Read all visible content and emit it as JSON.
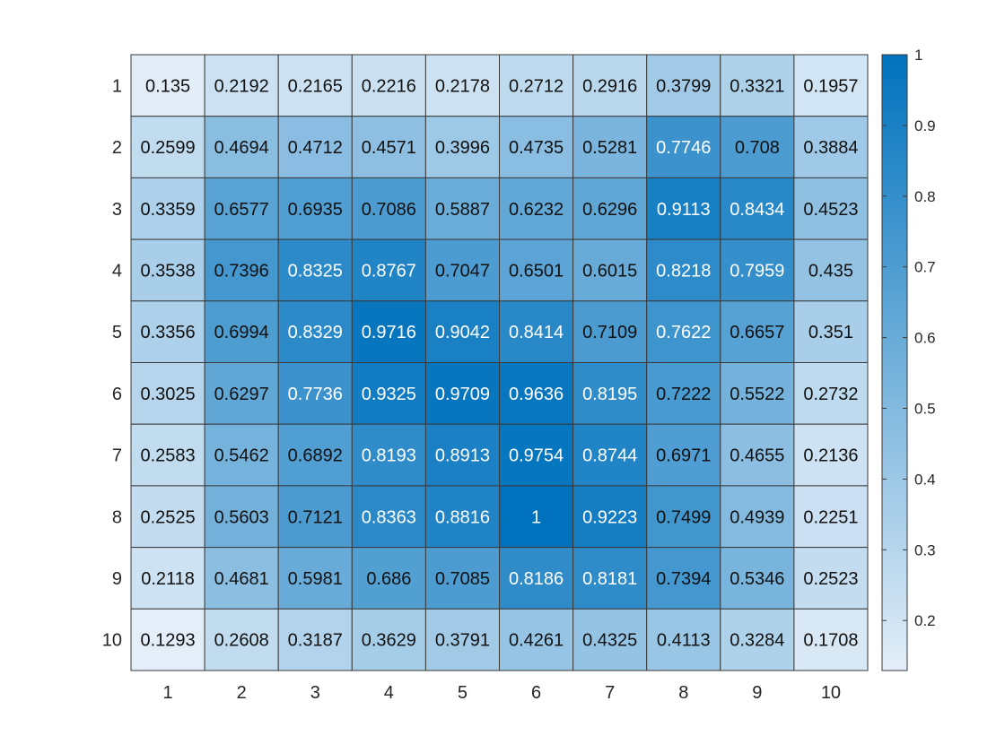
{
  "chart_data": {
    "type": "heatmap",
    "x_categories": [
      "1",
      "2",
      "3",
      "4",
      "5",
      "6",
      "7",
      "8",
      "9",
      "10"
    ],
    "y_categories": [
      "1",
      "2",
      "3",
      "4",
      "5",
      "6",
      "7",
      "8",
      "9",
      "10"
    ],
    "values": [
      [
        0.135,
        0.2192,
        0.2165,
        0.2216,
        0.2178,
        0.2712,
        0.2916,
        0.3799,
        0.3321,
        0.1957
      ],
      [
        0.2599,
        0.4694,
        0.4712,
        0.4571,
        0.3996,
        0.4735,
        0.5281,
        0.7746,
        0.708,
        0.3884
      ],
      [
        0.3359,
        0.6577,
        0.6935,
        0.7086,
        0.5887,
        0.6232,
        0.6296,
        0.9113,
        0.8434,
        0.4523
      ],
      [
        0.3538,
        0.7396,
        0.8325,
        0.8767,
        0.7047,
        0.6501,
        0.6015,
        0.8218,
        0.7959,
        0.435
      ],
      [
        0.3356,
        0.6994,
        0.8329,
        0.9716,
        0.9042,
        0.8414,
        0.7109,
        0.7622,
        0.6657,
        0.351
      ],
      [
        0.3025,
        0.6297,
        0.7736,
        0.9325,
        0.9709,
        0.9636,
        0.8195,
        0.7222,
        0.5522,
        0.2732
      ],
      [
        0.2583,
        0.5462,
        0.6892,
        0.8193,
        0.8913,
        0.9754,
        0.8744,
        0.6971,
        0.4655,
        0.2136
      ],
      [
        0.2525,
        0.5603,
        0.7121,
        0.8363,
        0.8816,
        1,
        0.9223,
        0.7499,
        0.4939,
        0.2251
      ],
      [
        0.2118,
        0.4681,
        0.5981,
        0.686,
        0.7085,
        0.8186,
        0.8181,
        0.7394,
        0.5346,
        0.2523
      ],
      [
        0.1293,
        0.2608,
        0.3187,
        0.3629,
        0.3791,
        0.4261,
        0.4325,
        0.4113,
        0.3284,
        0.1708
      ]
    ],
    "color_range": [
      0.1293,
      1
    ],
    "colorbar_ticks": [
      "0.2",
      "0.3",
      "0.4",
      "0.5",
      "0.6",
      "0.7",
      "0.8",
      "0.9",
      "1"
    ],
    "colormap": {
      "low": "#e3eef8",
      "high": "#0072bd"
    },
    "grid": true,
    "title": "",
    "xlabel": "",
    "ylabel": ""
  }
}
